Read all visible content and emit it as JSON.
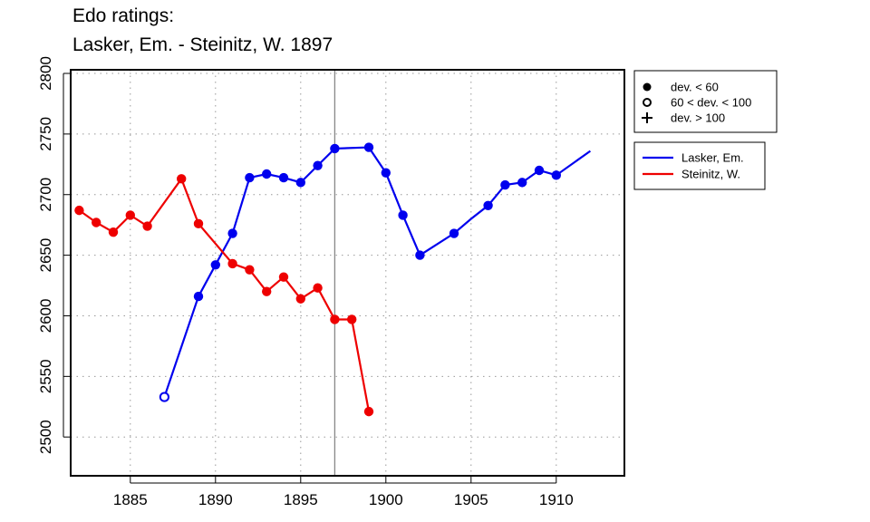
{
  "title_line1": "Edo ratings:",
  "title_line2": "Lasker, Em. - Steinitz, W. 1897",
  "chart_data": {
    "type": "line",
    "title": "Edo ratings: Lasker, Em. - Steinitz, W. 1897",
    "xlabel": "",
    "ylabel": "",
    "xlim": [
      1881.5,
      1914.0
    ],
    "ylim": [
      2468,
      2803
    ],
    "x_ticks": [
      1885,
      1890,
      1895,
      1900,
      1905,
      1910
    ],
    "y_ticks": [
      2500,
      2550,
      2600,
      2650,
      2700,
      2750,
      2800
    ],
    "grid": true,
    "grid_style": "dotted",
    "marker_line_x": 1897,
    "legend_markers": {
      "placement": "top-right outside plot",
      "entries": [
        {
          "label": "dev. < 60",
          "marker": "filled-circle"
        },
        {
          "label": "60 < dev. < 100",
          "marker": "open-circle"
        },
        {
          "label": "dev. > 100",
          "marker": "plus"
        }
      ]
    },
    "legend_series": {
      "placement": "right outside plot",
      "entries": [
        {
          "label": "Lasker, Em.",
          "color": "#0000ee"
        },
        {
          "label": "Steinitz, W.",
          "color": "#ee0000"
        }
      ]
    },
    "series": [
      {
        "name": "Lasker, Em.",
        "color": "#0000ee",
        "points": [
          {
            "x": 1887,
            "y": 2533,
            "marker": "open"
          },
          {
            "x": 1889,
            "y": 2616,
            "marker": "filled"
          },
          {
            "x": 1890,
            "y": 2642,
            "marker": "filled"
          },
          {
            "x": 1891,
            "y": 2668,
            "marker": "filled"
          },
          {
            "x": 1892,
            "y": 2714,
            "marker": "filled"
          },
          {
            "x": 1893,
            "y": 2717,
            "marker": "filled"
          },
          {
            "x": 1894,
            "y": 2714,
            "marker": "filled"
          },
          {
            "x": 1895,
            "y": 2710,
            "marker": "filled"
          },
          {
            "x": 1896,
            "y": 2724,
            "marker": "filled"
          },
          {
            "x": 1897,
            "y": 2738,
            "marker": "filled"
          },
          {
            "x": 1899,
            "y": 2739,
            "marker": "filled"
          },
          {
            "x": 1900,
            "y": 2718,
            "marker": "filled"
          },
          {
            "x": 1901,
            "y": 2683,
            "marker": "filled"
          },
          {
            "x": 1902,
            "y": 2650,
            "marker": "filled"
          },
          {
            "x": 1904,
            "y": 2668,
            "marker": "filled"
          },
          {
            "x": 1905,
            "y": 2680,
            "marker": "none"
          },
          {
            "x": 1906,
            "y": 2691,
            "marker": "filled"
          },
          {
            "x": 1907,
            "y": 2708,
            "marker": "filled"
          },
          {
            "x": 1908,
            "y": 2710,
            "marker": "filled"
          },
          {
            "x": 1909,
            "y": 2720,
            "marker": "filled"
          },
          {
            "x": 1910,
            "y": 2716,
            "marker": "filled"
          },
          {
            "x": 1912,
            "y": 2736,
            "marker": "none"
          }
        ]
      },
      {
        "name": "Steinitz, W.",
        "color": "#ee0000",
        "points": [
          {
            "x": 1882,
            "y": 2687,
            "marker": "filled"
          },
          {
            "x": 1883,
            "y": 2677,
            "marker": "filled"
          },
          {
            "x": 1884,
            "y": 2669,
            "marker": "filled"
          },
          {
            "x": 1885,
            "y": 2683,
            "marker": "filled"
          },
          {
            "x": 1886,
            "y": 2674,
            "marker": "filled"
          },
          {
            "x": 1888,
            "y": 2713,
            "marker": "filled"
          },
          {
            "x": 1889,
            "y": 2676,
            "marker": "filled"
          },
          {
            "x": 1891,
            "y": 2643,
            "marker": "filled"
          },
          {
            "x": 1892,
            "y": 2638,
            "marker": "filled"
          },
          {
            "x": 1893,
            "y": 2620,
            "marker": "filled"
          },
          {
            "x": 1894,
            "y": 2632,
            "marker": "filled"
          },
          {
            "x": 1895,
            "y": 2614,
            "marker": "filled"
          },
          {
            "x": 1896,
            "y": 2623,
            "marker": "filled"
          },
          {
            "x": 1897,
            "y": 2597,
            "marker": "filled"
          },
          {
            "x": 1898,
            "y": 2597,
            "marker": "filled"
          },
          {
            "x": 1899,
            "y": 2521,
            "marker": "filled"
          }
        ]
      }
    ]
  }
}
